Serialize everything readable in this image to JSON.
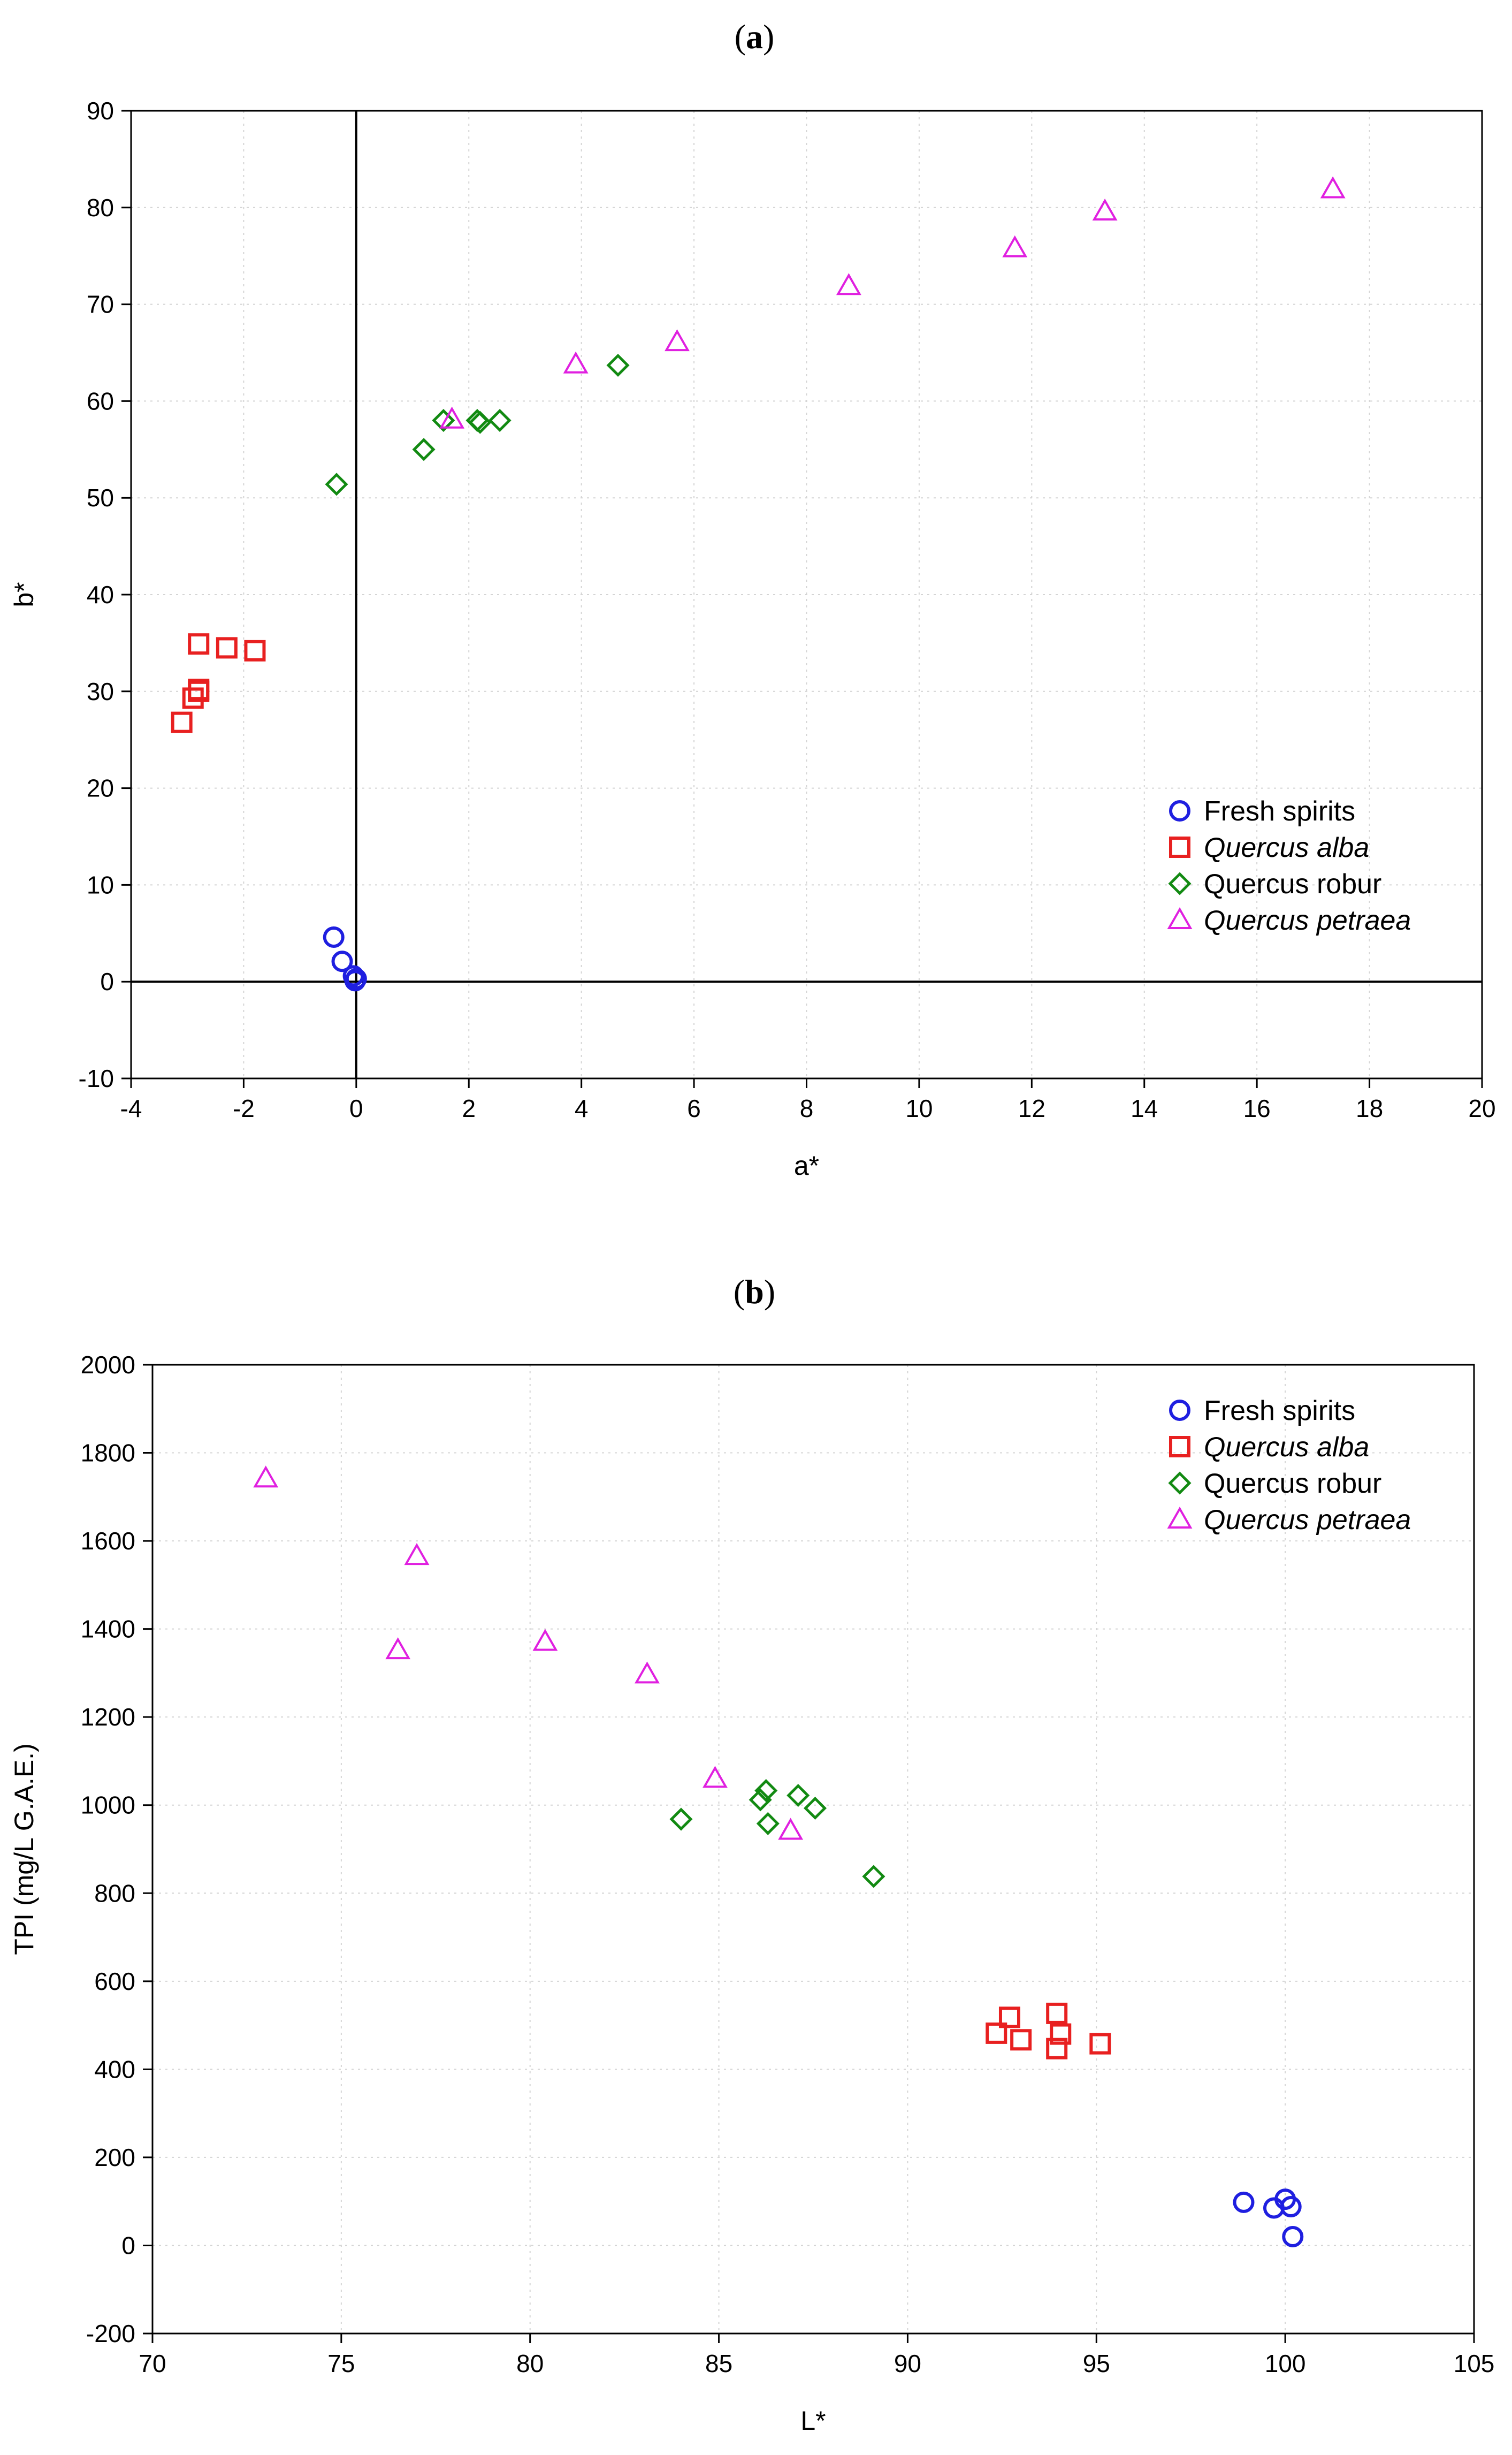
{
  "chart_data": [
    {
      "panel": "(a)",
      "type": "scatter",
      "xlabel": "a*",
      "ylabel": "b*",
      "xlim": [
        -4,
        20
      ],
      "ylim": [
        -10,
        90
      ],
      "xticks": [
        -4,
        -2,
        0,
        2,
        4,
        6,
        8,
        10,
        12,
        14,
        16,
        18,
        20
      ],
      "yticks": [
        -10,
        0,
        10,
        20,
        30,
        40,
        50,
        60,
        70,
        80,
        90
      ],
      "grid": true,
      "reference_lines": {
        "x": 0,
        "y": 0
      },
      "legend_position": "lower-right",
      "series": [
        {
          "name": "Fresh spirits",
          "italic": false,
          "marker": "circle",
          "color": "#1f1fe0",
          "points": [
            [
              -0.4,
              4.6
            ],
            [
              -0.25,
              2.1
            ],
            [
              -0.05,
              0.6
            ],
            [
              -0.02,
              0.1
            ],
            [
              0.0,
              0.3
            ]
          ]
        },
        {
          "name": "Quercus alba",
          "italic": true,
          "marker": "square",
          "color": "#e82020",
          "points": [
            [
              -3.1,
              26.8
            ],
            [
              -2.9,
              29.3
            ],
            [
              -2.8,
              30.2
            ],
            [
              -2.8,
              30.0
            ],
            [
              -2.8,
              34.9
            ],
            [
              -2.3,
              34.5
            ],
            [
              -1.8,
              34.2
            ]
          ]
        },
        {
          "name": "Quercus robur",
          "italic": false,
          "marker": "diamond",
          "color": "#128a12",
          "points": [
            [
              -0.35,
              51.4
            ],
            [
              1.2,
              55.0
            ],
            [
              1.55,
              58.0
            ],
            [
              2.15,
              58.0
            ],
            [
              2.2,
              57.8
            ],
            [
              2.55,
              58.0
            ],
            [
              4.65,
              63.7
            ]
          ]
        },
        {
          "name": "Quercus petraea",
          "italic": true,
          "marker": "triangle",
          "color": "#e020e0",
          "points": [
            [
              1.7,
              58.1
            ],
            [
              3.9,
              63.8
            ],
            [
              5.7,
              66.1
            ],
            [
              8.75,
              71.9
            ],
            [
              11.7,
              75.8
            ],
            [
              13.3,
              79.6
            ],
            [
              17.35,
              81.9
            ]
          ]
        }
      ]
    },
    {
      "panel": "(b)",
      "type": "scatter",
      "xlabel": "L*",
      "ylabel": "TPI (mg/L G.A.E.)",
      "xlim": [
        70,
        105
      ],
      "ylim": [
        -200,
        2000
      ],
      "xticks": [
        70,
        75,
        80,
        85,
        90,
        95,
        100,
        105
      ],
      "yticks": [
        -200,
        0,
        200,
        400,
        600,
        800,
        1000,
        1200,
        1400,
        1600,
        1800,
        2000
      ],
      "grid": true,
      "legend_position": "top-right",
      "series": [
        {
          "name": "Fresh spirits",
          "italic": false,
          "marker": "circle",
          "color": "#1f1fe0",
          "points": [
            [
              98.9,
              98
            ],
            [
              99.7,
              85
            ],
            [
              100.0,
              105
            ],
            [
              100.15,
              88
            ],
            [
              100.2,
              20
            ]
          ]
        },
        {
          "name": "Quercus alba",
          "italic": true,
          "marker": "square",
          "color": "#e82020",
          "points": [
            [
              92.35,
              482
            ],
            [
              92.7,
              518
            ],
            [
              93.0,
              467
            ],
            [
              93.95,
              527
            ],
            [
              93.95,
              447
            ],
            [
              94.05,
              480
            ],
            [
              95.1,
              458
            ]
          ]
        },
        {
          "name": "Quercus robur",
          "italic": false,
          "marker": "diamond",
          "color": "#128a12",
          "points": [
            [
              84.0,
              968
            ],
            [
              86.1,
              1012
            ],
            [
              86.25,
              1033
            ],
            [
              86.3,
              958
            ],
            [
              87.1,
              1022
            ],
            [
              87.55,
              993
            ],
            [
              89.1,
              838
            ]
          ]
        },
        {
          "name": "Quercus petraea",
          "italic": true,
          "marker": "triangle",
          "color": "#e020e0",
          "points": [
            [
              73.0,
              1742
            ],
            [
              76.5,
              1352
            ],
            [
              77.0,
              1566
            ],
            [
              80.4,
              1371
            ],
            [
              83.1,
              1297
            ],
            [
              84.9,
              1060
            ],
            [
              86.9,
              942
            ]
          ]
        }
      ]
    }
  ]
}
